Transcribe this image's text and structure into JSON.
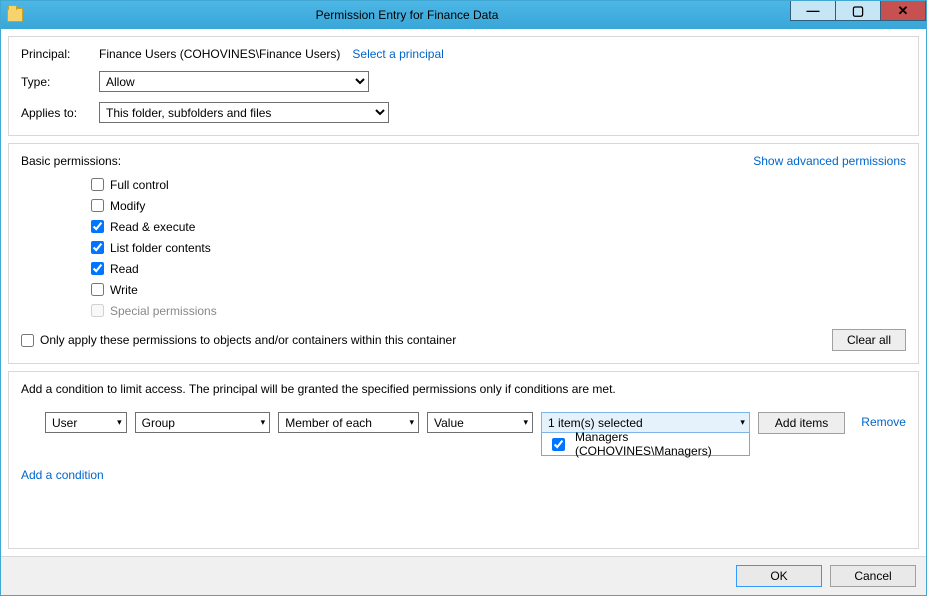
{
  "window": {
    "title": "Permission Entry for Finance Data"
  },
  "top": {
    "principal_label": "Principal:",
    "principal_value": "Finance Users (COHOVINES\\Finance Users)",
    "select_principal": "Select a principal",
    "type_label": "Type:",
    "type_value": "Allow",
    "applies_label": "Applies to:",
    "applies_value": "This folder, subfolders and files"
  },
  "perm": {
    "heading": "Basic permissions:",
    "show_advanced": "Show advanced permissions",
    "items": {
      "full": "Full control",
      "modify": "Modify",
      "readexec": "Read & execute",
      "listfolder": "List folder contents",
      "read": "Read",
      "write": "Write",
      "special": "Special permissions"
    },
    "only_apply": "Only apply these permissions to objects and/or containers within this container",
    "clear_all": "Clear all"
  },
  "cond": {
    "description": "Add a condition to limit access. The principal will be granted the specified permissions only if conditions are met.",
    "dd1": "User",
    "dd2": "Group",
    "dd3": "Member of each",
    "dd4": "Value",
    "selected_text": "1 item(s) selected",
    "selected_item": "Managers (COHOVINES\\Managers)",
    "add_items": "Add items",
    "remove": "Remove",
    "add_condition": "Add a condition"
  },
  "footer": {
    "ok": "OK",
    "cancel": "Cancel"
  }
}
